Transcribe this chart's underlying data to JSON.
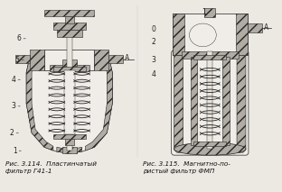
{
  "bg_color": "#ece9e3",
  "caption_left_line1": "Рис. 3.114.  Пластинчатый",
  "caption_left_line2": "фильтр Г41-1",
  "caption_right_line1": "Рис. 3.115.  Магнитно-по-",
  "caption_right_line2": "ристый фильтр ФМП",
  "caption_fontsize": 5.2,
  "label_fontsize": 5.5,
  "fig_width": 3.12,
  "fig_height": 2.13,
  "dpi": 100,
  "edge_color": "#222222",
  "hatch_color": "#555555",
  "fill_light": "#e8e4dc",
  "fill_gray": "#b0aca4",
  "fill_white": "#f0ede8"
}
